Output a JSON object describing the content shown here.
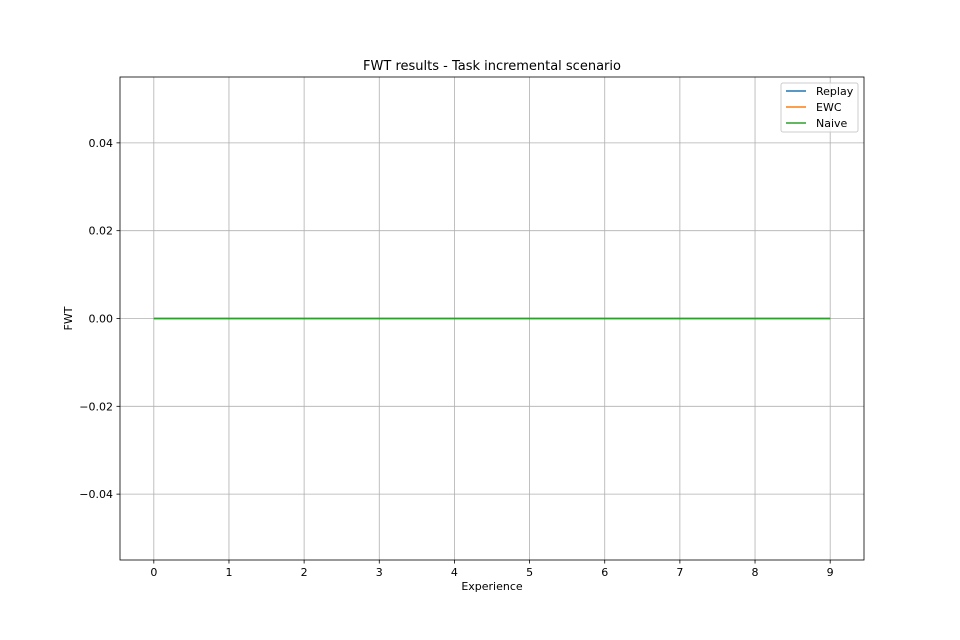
{
  "chart_data": {
    "type": "line",
    "title": "FWT results - Task incremental scenario",
    "xlabel": "Experience",
    "ylabel": "FWT",
    "x": [
      0,
      1,
      2,
      3,
      4,
      5,
      6,
      7,
      8,
      9
    ],
    "xlim": [
      -0.45,
      9.45
    ],
    "ylim": [
      -0.055,
      0.055
    ],
    "x_ticks": [
      0,
      1,
      2,
      3,
      4,
      5,
      6,
      7,
      8,
      9
    ],
    "y_ticks": [
      -0.04,
      -0.02,
      0.0,
      0.02,
      0.04
    ],
    "y_tick_labels": [
      "−0.04",
      "−0.02",
      "0.00",
      "0.02",
      "0.04"
    ],
    "grid": true,
    "legend_position": "top-right",
    "series": [
      {
        "name": "Replay",
        "color": "#1f77b4",
        "values": [
          0,
          0,
          0,
          0,
          0,
          0,
          0,
          0,
          0,
          0
        ]
      },
      {
        "name": "EWC",
        "color": "#ff7f0e",
        "values": [
          0,
          0,
          0,
          0,
          0,
          0,
          0,
          0,
          0,
          0
        ]
      },
      {
        "name": "Naive",
        "color": "#2ca02c",
        "values": [
          0,
          0,
          0,
          0,
          0,
          0,
          0,
          0,
          0,
          0
        ]
      }
    ]
  }
}
